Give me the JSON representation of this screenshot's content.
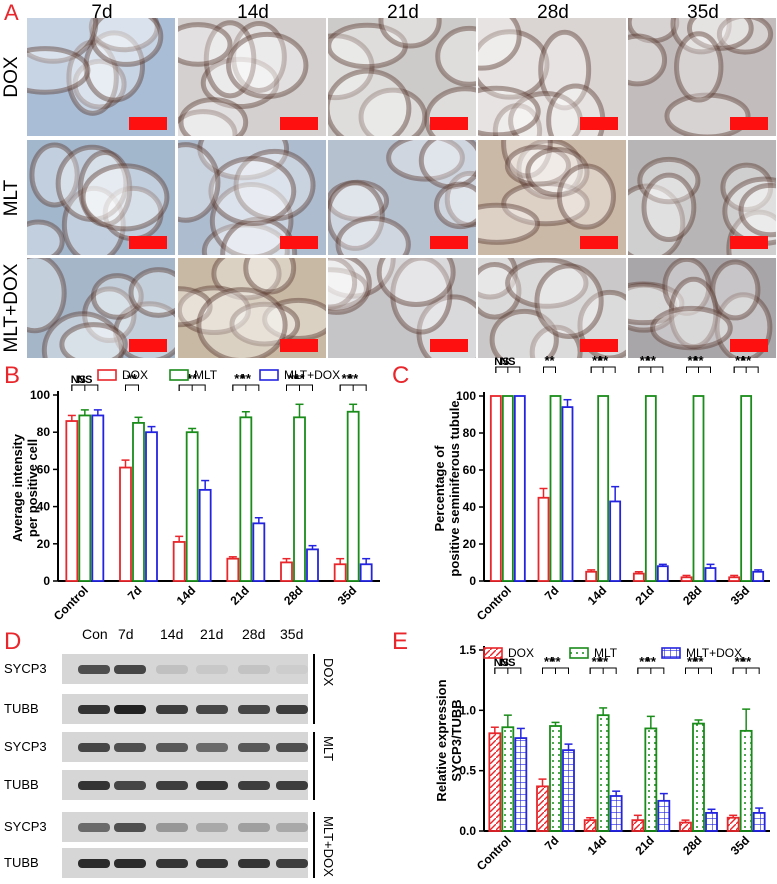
{
  "panel_a": {
    "letter": "A",
    "columns": [
      "7d",
      "14d",
      "21d",
      "28d",
      "35d"
    ],
    "rows": [
      "DOX",
      "MLT",
      "MLT+DOX"
    ],
    "tile_tones": [
      [
        "#a9bed6",
        "#d3d0cf",
        "#cdcbc9",
        "#dad5d3",
        "#c2bcbc"
      ],
      [
        "#a2b6cc",
        "#adbccf",
        "#b6c1cf",
        "#cbb9a8",
        "#b7b5b5"
      ],
      [
        "#a5b6c9",
        "#c8b9a4",
        "#c5c4c6",
        "#cac8c8",
        "#a9a6a9"
      ]
    ],
    "scale_bar_color": "#ff1010"
  },
  "panel_b": {
    "letter": "B",
    "chart_data": {
      "type": "bar",
      "ylabel": "Average intensity per positive cell",
      "categories": [
        "Control",
        "7d",
        "14d",
        "21d",
        "28d",
        "35d"
      ],
      "ylim": [
        0,
        100
      ],
      "yticks": [
        0,
        20,
        40,
        60,
        80,
        100
      ],
      "legend_position": "top",
      "series": [
        {
          "name": "DOX",
          "color": "#e8262b",
          "values": [
            86,
            61,
            21,
            12,
            10,
            9
          ],
          "errors": [
            3,
            4,
            3,
            1,
            2,
            3
          ]
        },
        {
          "name": "MLT",
          "color": "#1a8c1a",
          "values": [
            89,
            85,
            80,
            88,
            88,
            91
          ],
          "errors": [
            3,
            3,
            2,
            3,
            7,
            4
          ]
        },
        {
          "name": "MLT+DOX",
          "color": "#2424e0",
          "values": [
            89,
            80,
            49,
            31,
            17,
            9
          ],
          "errors": [
            3,
            3,
            5,
            3,
            2,
            3
          ]
        }
      ],
      "significance": [
        {
          "group": 0,
          "labels": [
            "NS",
            "NS"
          ]
        },
        {
          "group": 1,
          "labels": [
            "**",
            ""
          ]
        },
        {
          "group": 2,
          "labels": [
            "**",
            "**"
          ]
        },
        {
          "group": 3,
          "labels": [
            "**",
            "**"
          ]
        },
        {
          "group": 4,
          "labels": [
            "**",
            "**"
          ]
        },
        {
          "group": 5,
          "labels": [
            "**",
            "**"
          ]
        }
      ]
    }
  },
  "panel_c": {
    "letter": "C",
    "chart_data": {
      "type": "bar",
      "ylabel": "Percentage of positive seminiferous tubule",
      "categories": [
        "Control",
        "7d",
        "14d",
        "21d",
        "28d",
        "35d"
      ],
      "ylim": [
        0,
        100
      ],
      "yticks": [
        0,
        20,
        40,
        60,
        80,
        100
      ],
      "series": [
        {
          "name": "DOX",
          "color": "#e8262b",
          "values": [
            100,
            45,
            5,
            4,
            2,
            2
          ],
          "errors": [
            0,
            5,
            1,
            1,
            1,
            1
          ]
        },
        {
          "name": "MLT",
          "color": "#1a8c1a",
          "values": [
            100,
            100,
            100,
            100,
            100,
            100
          ],
          "errors": [
            0,
            0,
            0,
            0,
            0,
            0
          ]
        },
        {
          "name": "MLT+DOX",
          "color": "#2424e0",
          "values": [
            100,
            94,
            43,
            8,
            7,
            5
          ],
          "errors": [
            0,
            4,
            8,
            1,
            2,
            1
          ]
        }
      ],
      "significance": [
        {
          "group": 0,
          "labels": [
            "NS",
            "NS"
          ]
        },
        {
          "group": 1,
          "labels": [
            "**",
            ""
          ]
        },
        {
          "group": 2,
          "labels": [
            "**",
            "**"
          ]
        },
        {
          "group": 3,
          "labels": [
            "**",
            "**"
          ]
        },
        {
          "group": 4,
          "labels": [
            "**",
            "**"
          ]
        },
        {
          "group": 5,
          "labels": [
            "**",
            "**"
          ]
        }
      ]
    }
  },
  "panel_d": {
    "letter": "D",
    "lanes": [
      "Con",
      "7d",
      "14d",
      "21d",
      "28d",
      "35d"
    ],
    "groups": [
      {
        "name": "DOX",
        "rows": [
          {
            "label": "SYCP3",
            "intensities": [
              0.75,
              0.8,
              0.12,
              0.08,
              0.1,
              0.05
            ]
          },
          {
            "label": "TUBB",
            "intensities": [
              0.9,
              1.0,
              0.85,
              0.8,
              0.8,
              0.85
            ]
          }
        ]
      },
      {
        "name": "MLT",
        "rows": [
          {
            "label": "SYCP3",
            "intensities": [
              0.8,
              0.75,
              0.7,
              0.6,
              0.7,
              0.75
            ]
          },
          {
            "label": "TUBB",
            "intensities": [
              0.9,
              0.8,
              0.85,
              0.9,
              0.85,
              0.85
            ]
          }
        ]
      },
      {
        "name": "MLT+DOX",
        "rows": [
          {
            "label": "SYCP3",
            "intensities": [
              0.6,
              0.75,
              0.35,
              0.25,
              0.3,
              0.25
            ]
          },
          {
            "label": "TUBB",
            "intensities": [
              0.95,
              0.95,
              0.9,
              0.9,
              0.9,
              0.85
            ]
          }
        ]
      }
    ]
  },
  "panel_e": {
    "letter": "E",
    "chart_data": {
      "type": "bar",
      "ylabel": "Relative expression SYCP3/TUBB",
      "categories": [
        "Control",
        "7d",
        "14d",
        "21d",
        "28d",
        "35d"
      ],
      "ylim": [
        0,
        1.5
      ],
      "yticks": [
        "0.0",
        "0.5",
        "1.0",
        "1.5"
      ],
      "legend_position": "top",
      "series": [
        {
          "name": "DOX",
          "color": "#e8262b",
          "pattern": "hatch",
          "values": [
            0.81,
            0.37,
            0.09,
            0.09,
            0.07,
            0.11
          ],
          "errors": [
            0.05,
            0.06,
            0.02,
            0.04,
            0.02,
            0.02
          ]
        },
        {
          "name": "MLT",
          "color": "#1a8c1a",
          "pattern": "dots",
          "values": [
            0.86,
            0.87,
            0.96,
            0.85,
            0.89,
            0.83
          ],
          "errors": [
            0.1,
            0.03,
            0.06,
            0.1,
            0.03,
            0.18
          ]
        },
        {
          "name": "MLT+DOX",
          "color": "#2424e0",
          "pattern": "grid",
          "values": [
            0.77,
            0.67,
            0.29,
            0.25,
            0.15,
            0.15
          ],
          "errors": [
            0.08,
            0.05,
            0.04,
            0.06,
            0.03,
            0.04
          ]
        }
      ],
      "significance": [
        {
          "group": 0,
          "labels": [
            "NS",
            "NS"
          ]
        },
        {
          "group": 1,
          "labels": [
            "**",
            "**"
          ]
        },
        {
          "group": 2,
          "labels": [
            "**",
            "**"
          ]
        },
        {
          "group": 3,
          "labels": [
            "**",
            "**"
          ]
        },
        {
          "group": 4,
          "labels": [
            "**",
            "**"
          ]
        },
        {
          "group": 5,
          "labels": [
            "**",
            "**"
          ]
        }
      ]
    }
  }
}
